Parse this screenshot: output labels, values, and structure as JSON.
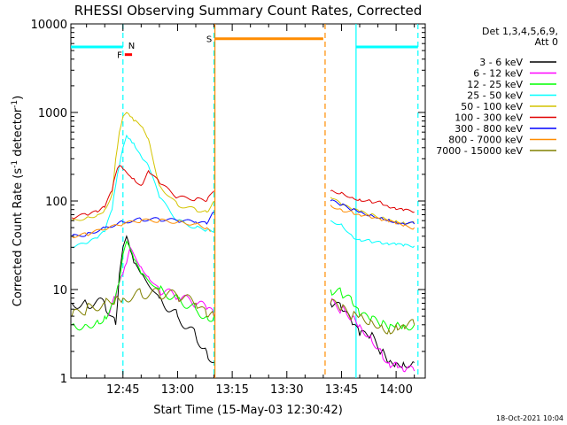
{
  "chart_data": {
    "type": "line",
    "title": "RHESSI Observing Summary Count Rates, Corrected",
    "xlabel": "Start Time (15-May-03 12:30:42)",
    "ylabel": "Corrected Count Rate (s",
    "ylabel_sup1": "-1",
    "ylabel_mid": " detector",
    "ylabel_sup2": "-1",
    "ylabel_end": ")",
    "y_scale": "log",
    "ylim": [
      1,
      10000
    ],
    "xlim": [
      "12:30:42",
      "14:08:00"
    ],
    "x_ticks": [
      "12:45",
      "13:00",
      "13:15",
      "13:30",
      "13:45",
      "14:00"
    ],
    "y_ticks": [
      "1",
      "10",
      "100",
      "1000",
      "10000"
    ],
    "footer_date": "18-Oct-2021 10:04",
    "legend": {
      "header1": "Det 1,3,4,5,6,9,",
      "header2": "Att 0",
      "placement": "right",
      "entries": [
        {
          "label": "3 - 6 keV",
          "color": "#000000"
        },
        {
          "label": "6 - 12 keV",
          "color": "#ff00ff"
        },
        {
          "label": "12 - 25 keV",
          "color": "#00ff00"
        },
        {
          "label": "25 - 50 keV",
          "color": "#00ffff"
        },
        {
          "label": "50 - 100 keV",
          "color": "#d4c400"
        },
        {
          "label": "100 - 300 keV",
          "color": "#e00000"
        },
        {
          "label": "300 - 800 keV",
          "color": "#0000ff"
        },
        {
          "label": "800 - 7000 keV",
          "color": "#ff8c00"
        },
        {
          "label": "7000 - 15000 keV",
          "color": "#808000"
        }
      ]
    },
    "flags": [
      {
        "label": "N",
        "color": "#00ffff",
        "segments": [
          [
            "12:30:42",
            "12:45:00",
            5500
          ],
          [
            "13:49:00",
            "14:06:00",
            5500
          ]
        ]
      },
      {
        "label": "F",
        "color": "#ff0000",
        "segments": [
          [
            "12:45:30",
            "12:47:30",
            4500
          ]
        ]
      },
      {
        "label": "S",
        "color": "#ff8c00",
        "segments": [
          [
            "13:10:10",
            "13:40:00",
            6800
          ]
        ]
      }
    ],
    "vlines": [
      {
        "t": "12:45:00",
        "color": "#00ffff",
        "style": "dashed"
      },
      {
        "t": "13:10:00",
        "color": "#00ffff",
        "style": "dashed"
      },
      {
        "t": "13:10:15",
        "color": "#ff8c00",
        "style": "solid"
      },
      {
        "t": "13:40:30",
        "color": "#ff8c00",
        "style": "dashed"
      },
      {
        "t": "13:49:00",
        "color": "#00ffff",
        "style": "solid"
      },
      {
        "t": "14:06:00",
        "color": "#00ffff",
        "style": "dashed"
      }
    ],
    "series": [
      {
        "name": "3 - 6 keV",
        "color": "#000000",
        "x": [
          "12:31",
          "12:35",
          "12:40",
          "12:43",
          "12:44",
          "12:45",
          "12:46",
          "12:47",
          "12:48",
          "12:50",
          "12:55",
          "13:00",
          "13:05",
          "13:08",
          "13:10",
          "13:42",
          "13:45",
          "13:48",
          "13:50",
          "13:53",
          "13:56",
          "13:58",
          "14:00",
          "14:02",
          "14:05"
        ],
        "y": [
          7,
          7,
          7,
          4,
          15,
          30,
          40,
          28,
          20,
          15,
          8,
          5,
          3,
          2,
          1.5,
          7,
          6,
          4,
          3,
          3,
          2,
          1.5,
          1.5,
          1.5,
          1.5
        ]
      },
      {
        "name": "6 - 12 keV",
        "color": "#ff00ff",
        "x": [
          "12:41",
          "12:43",
          "12:44",
          "12:45",
          "12:46",
          "12:47",
          "12:48",
          "12:50",
          "12:52",
          "12:55",
          "13:00",
          "13:05",
          "13:08",
          "13:10",
          "13:42",
          "13:45",
          "13:48",
          "13:50",
          "13:53",
          "13:56",
          "13:58",
          "14:00",
          "14:02",
          "14:05"
        ],
        "y": [
          5,
          8,
          12,
          15,
          20,
          30,
          25,
          18,
          14,
          10,
          8,
          7,
          6,
          5,
          7,
          6,
          5,
          4,
          3,
          2,
          1.5,
          1.5,
          1.2,
          1.2
        ]
      },
      {
        "name": "12 - 25 keV",
        "color": "#00ff00",
        "x": [
          "12:31",
          "12:35",
          "12:38",
          "12:40",
          "12:42",
          "12:44",
          "12:45",
          "12:46",
          "12:48",
          "12:50",
          "12:55",
          "13:00",
          "13:05",
          "13:08",
          "13:10",
          "13:42",
          "13:45",
          "13:48",
          "13:50",
          "13:53",
          "13:56",
          "13:58",
          "14:00",
          "14:02",
          "14:05"
        ],
        "y": [
          4,
          4,
          4.5,
          5,
          7,
          12,
          25,
          35,
          22,
          15,
          10,
          8,
          6,
          5,
          5,
          10,
          9,
          7,
          5,
          4.5,
          4,
          3.5,
          4,
          4,
          4
        ]
      },
      {
        "name": "25 - 50 keV",
        "color": "#00ffff",
        "x": [
          "12:31",
          "12:35",
          "12:38",
          "12:40",
          "12:42",
          "12:43",
          "12:44",
          "12:45",
          "12:46",
          "12:47",
          "12:48",
          "12:50",
          "12:52",
          "12:55",
          "13:00",
          "13:05",
          "13:08",
          "13:10",
          "13:42",
          "13:45",
          "13:48",
          "13:50",
          "13:53",
          "13:56",
          "13:58",
          "14:00",
          "14:02",
          "14:05"
        ],
        "y": [
          30,
          33,
          38,
          45,
          80,
          150,
          250,
          400,
          550,
          500,
          450,
          320,
          250,
          110,
          60,
          50,
          47,
          45,
          60,
          55,
          40,
          37,
          35,
          33,
          32,
          32,
          31,
          31
        ]
      },
      {
        "name": "50 - 100 keV",
        "color": "#d4c400",
        "x": [
          "12:31",
          "12:35",
          "12:38",
          "12:40",
          "12:42",
          "12:43",
          "12:44",
          "12:45",
          "12:46",
          "12:47",
          "12:48",
          "12:50",
          "12:52",
          "12:55",
          "13:00",
          "13:05",
          "13:08",
          "13:10",
          "13:42",
          "13:45",
          "13:48",
          "13:50",
          "13:53",
          "13:56",
          "13:58",
          "14:00",
          "14:02",
          "14:05"
        ],
        "y": [
          60,
          65,
          70,
          80,
          120,
          300,
          600,
          900,
          1000,
          900,
          800,
          700,
          500,
          150,
          90,
          80,
          75,
          100,
          110,
          90,
          80,
          75,
          70,
          65,
          62,
          60,
          58,
          57
        ]
      },
      {
        "name": "100 - 300 keV",
        "color": "#e00000",
        "x": [
          "12:31",
          "12:35",
          "12:38",
          "12:40",
          "12:42",
          "12:43",
          "12:44",
          "12:45",
          "12:46",
          "12:47",
          "12:48",
          "12:50",
          "12:52",
          "12:55",
          "13:00",
          "13:05",
          "13:08",
          "13:10",
          "13:42",
          "13:45",
          "13:48",
          "13:50",
          "13:53",
          "13:56",
          "13:58",
          "14:00",
          "14:02",
          "14:05"
        ],
        "y": [
          65,
          70,
          75,
          85,
          130,
          200,
          250,
          230,
          210,
          190,
          180,
          150,
          220,
          160,
          110,
          105,
          100,
          130,
          130,
          125,
          110,
          105,
          100,
          95,
          85,
          80,
          78,
          75
        ]
      },
      {
        "name": "300 - 800 keV",
        "color": "#0000ff",
        "x": [
          "12:31",
          "12:35",
          "12:40",
          "12:45",
          "12:50",
          "12:55",
          "13:00",
          "13:05",
          "13:08",
          "13:10",
          "13:42",
          "13:45",
          "13:48",
          "13:50",
          "13:53",
          "13:56",
          "13:58",
          "14:00",
          "14:02",
          "14:05"
        ],
        "y": [
          40,
          42,
          50,
          58,
          62,
          62,
          60,
          58,
          55,
          75,
          100,
          90,
          80,
          75,
          70,
          65,
          62,
          58,
          56,
          55
        ]
      },
      {
        "name": "800 - 7000 keV",
        "color": "#ff8c00",
        "x": [
          "12:31",
          "12:35",
          "12:40",
          "12:45",
          "12:50",
          "12:55",
          "13:00",
          "13:05",
          "13:08",
          "13:09",
          "13:42",
          "13:45",
          "13:48",
          "13:50",
          "13:53",
          "13:56",
          "13:58",
          "14:00",
          "14:02",
          "14:05"
        ],
        "y": [
          40,
          42,
          48,
          55,
          60,
          60,
          58,
          55,
          50,
          45,
          90,
          80,
          75,
          70,
          65,
          60,
          58,
          55,
          52,
          50
        ]
      },
      {
        "name": "7000 - 15000 keV",
        "color": "#808000",
        "x": [
          "12:31",
          "12:35",
          "12:40",
          "12:43",
          "12:45",
          "12:50",
          "12:55",
          "13:00",
          "13:05",
          "13:08",
          "13:10",
          "13:42",
          "13:45",
          "13:48",
          "13:50",
          "13:53",
          "13:56",
          "13:58",
          "14:00",
          "14:02",
          "14:05"
        ],
        "y": [
          5,
          6,
          7,
          8,
          8,
          9,
          9,
          8.5,
          7,
          5,
          5,
          7,
          6,
          5,
          5,
          4.5,
          4,
          3.5,
          4,
          4,
          4
        ]
      }
    ]
  }
}
